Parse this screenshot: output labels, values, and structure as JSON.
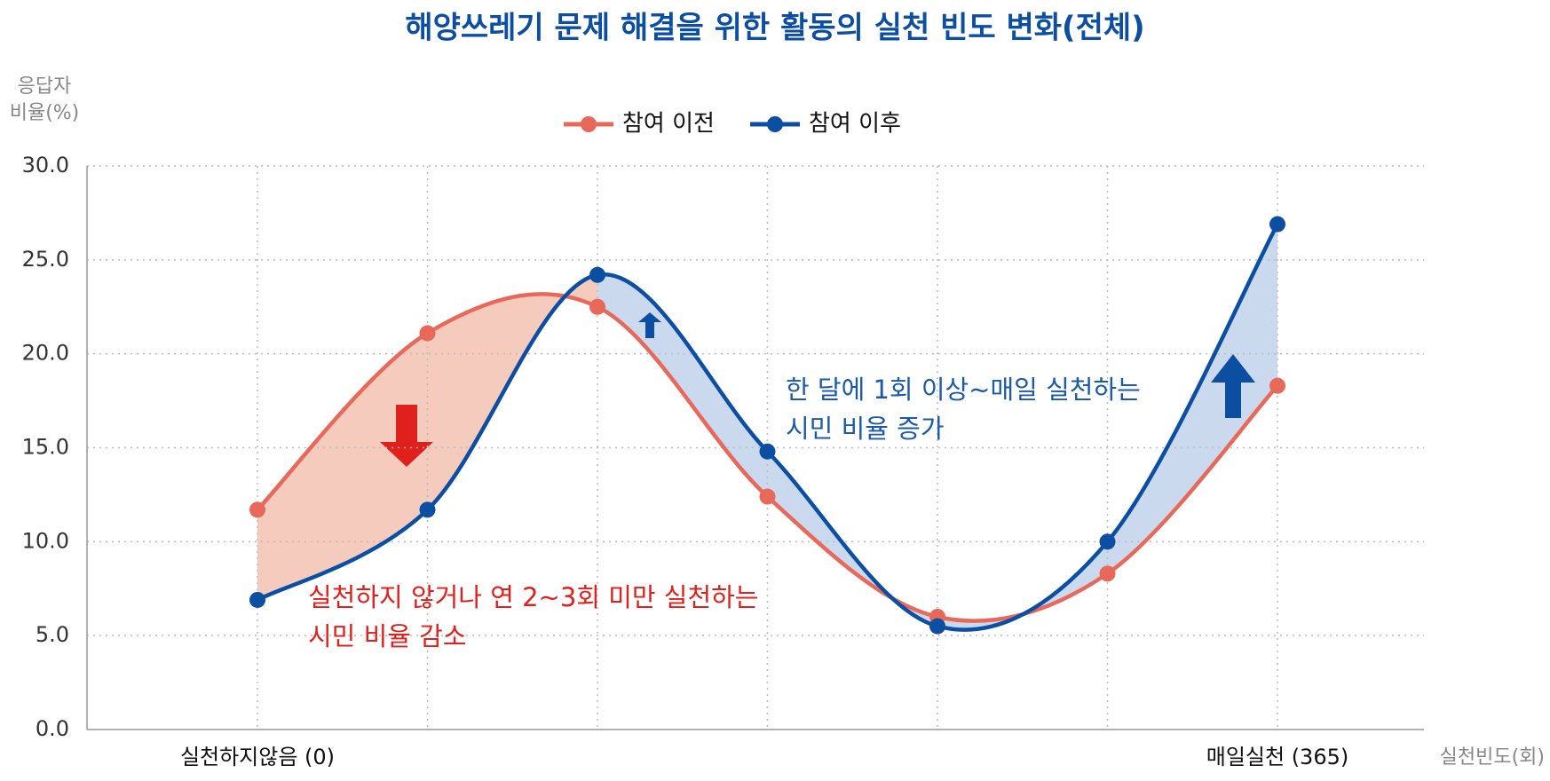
{
  "chart_data": {
    "type": "line",
    "title": "해양쓰레기 문제 해결을 위한 활동의 실천 빈도 변화(전체)",
    "y_label": [
      "응답자",
      "비율(%)"
    ],
    "x_label": "실천빈도(회)",
    "categories": [
      "실천하지않음 (0)",
      null,
      null,
      null,
      null,
      null,
      "매일실천 (365)"
    ],
    "series": [
      {
        "name": "참여 이전",
        "color": "#e8685a",
        "values": [
          11.7,
          21.1,
          22.5,
          12.4,
          6.0,
          8.3,
          18.3
        ]
      },
      {
        "name": "참여 이후",
        "color": "#0b4ea2",
        "values": [
          6.9,
          11.7,
          24.2,
          14.8,
          5.5,
          10.0,
          26.9
        ]
      }
    ],
    "ylim": [
      0,
      30
    ],
    "yticks": [
      {
        "value": 0,
        "label": "0.0"
      },
      {
        "value": 5,
        "label": "5.0"
      },
      {
        "value": 10,
        "label": "10.0"
      },
      {
        "value": 15,
        "label": "15.0"
      },
      {
        "value": 20,
        "label": "20.0"
      },
      {
        "value": 25,
        "label": "25.0"
      },
      {
        "value": 30,
        "label": "30.0"
      }
    ],
    "grid": true,
    "annotations": [
      {
        "lines": [
          "실천하지 않거나 연 2~3회 미만 실천하는",
          "시민 비율 감소"
        ],
        "color": "#e0201c"
      },
      {
        "lines": [
          "한 달에 1회 이상~매일 실천하는",
          "시민 비율 증가"
        ],
        "color": "#1a5aa8"
      }
    ]
  }
}
